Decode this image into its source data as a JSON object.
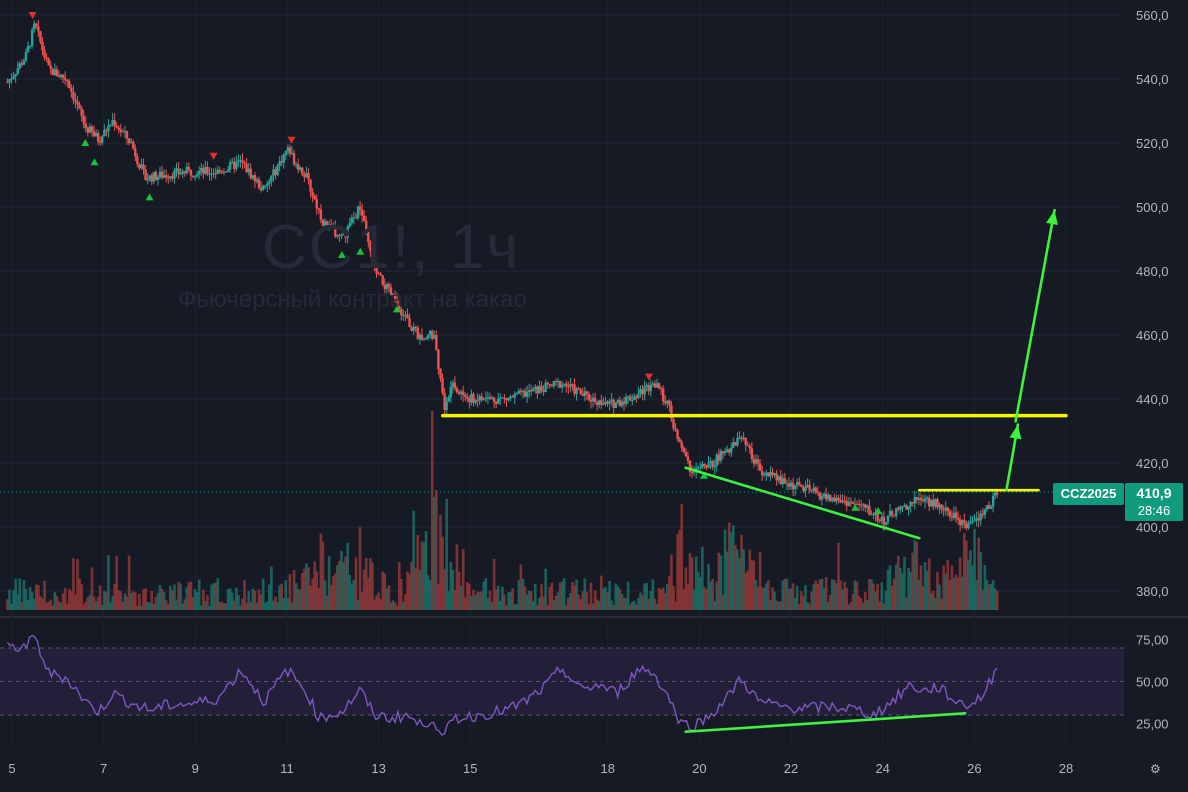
{
  "watermark": {
    "title": "CC1!, 1ч",
    "subtitle": "Фьючерсный контракт на какао"
  },
  "price_badge": {
    "symbol": "CCZ2025",
    "price": "410,9",
    "timer": "28:46"
  },
  "colors": {
    "background": "#161a25",
    "up": "#26a69a",
    "down": "#ef5350",
    "annotation_yellow": "#f5f500",
    "annotation_green": "#3ef23e",
    "rsi_line": "#7e57c2",
    "rsi_band": "#2a2240"
  },
  "chart_data": [
    {
      "type": "candlestick",
      "title": "",
      "y_ticks": [
        "560,0",
        "540,0",
        "520,0",
        "500,0",
        "480,0",
        "460,0",
        "440,0",
        "420,0",
        "400,0",
        "380,0"
      ],
      "ylim": [
        375,
        562
      ],
      "x_ticks": [
        "5",
        "7",
        "9",
        "11",
        "13",
        "15",
        "18",
        "20",
        "22",
        "24",
        "26",
        "28"
      ],
      "xlim": [
        4.8,
        29.0
      ],
      "grid": true,
      "last_price": 410.9,
      "close_path": [
        {
          "x": 4.9,
          "y": 539
        },
        {
          "x": 5.3,
          "y": 547
        },
        {
          "x": 5.5,
          "y": 557
        },
        {
          "x": 5.8,
          "y": 543
        },
        {
          "x": 6.2,
          "y": 540
        },
        {
          "x": 6.6,
          "y": 525
        },
        {
          "x": 6.9,
          "y": 521
        },
        {
          "x": 7.2,
          "y": 527
        },
        {
          "x": 7.6,
          "y": 520
        },
        {
          "x": 7.9,
          "y": 509
        },
        {
          "x": 8.3,
          "y": 510
        },
        {
          "x": 8.8,
          "y": 511
        },
        {
          "x": 9.5,
          "y": 511
        },
        {
          "x": 10.0,
          "y": 514
        },
        {
          "x": 10.5,
          "y": 505
        },
        {
          "x": 11.0,
          "y": 518
        },
        {
          "x": 11.4,
          "y": 510
        },
        {
          "x": 11.8,
          "y": 495
        },
        {
          "x": 12.2,
          "y": 490
        },
        {
          "x": 12.6,
          "y": 500
        },
        {
          "x": 12.9,
          "y": 480
        },
        {
          "x": 13.3,
          "y": 472
        },
        {
          "x": 13.6,
          "y": 465
        },
        {
          "x": 13.9,
          "y": 459
        },
        {
          "x": 14.2,
          "y": 460
        },
        {
          "x": 14.45,
          "y": 437
        },
        {
          "x": 14.6,
          "y": 444
        },
        {
          "x": 15.0,
          "y": 440
        },
        {
          "x": 15.8,
          "y": 440
        },
        {
          "x": 16.5,
          "y": 443
        },
        {
          "x": 17.0,
          "y": 445
        },
        {
          "x": 17.5,
          "y": 441
        },
        {
          "x": 18.0,
          "y": 438
        },
        {
          "x": 18.6,
          "y": 441
        },
        {
          "x": 19.0,
          "y": 445
        },
        {
          "x": 19.3,
          "y": 439
        },
        {
          "x": 19.5,
          "y": 428
        },
        {
          "x": 19.8,
          "y": 418
        },
        {
          "x": 20.2,
          "y": 419
        },
        {
          "x": 20.6,
          "y": 424
        },
        {
          "x": 20.9,
          "y": 428
        },
        {
          "x": 21.3,
          "y": 418
        },
        {
          "x": 21.8,
          "y": 414
        },
        {
          "x": 22.3,
          "y": 412
        },
        {
          "x": 22.8,
          "y": 409
        },
        {
          "x": 23.2,
          "y": 408
        },
        {
          "x": 23.6,
          "y": 406
        },
        {
          "x": 24.0,
          "y": 402
        },
        {
          "x": 24.4,
          "y": 406
        },
        {
          "x": 24.8,
          "y": 409
        },
        {
          "x": 25.2,
          "y": 407
        },
        {
          "x": 25.6,
          "y": 403
        },
        {
          "x": 25.9,
          "y": 400
        },
        {
          "x": 26.2,
          "y": 404
        },
        {
          "x": 26.5,
          "y": 410.9
        }
      ],
      "signal_markers": [
        {
          "x": 5.45,
          "y": 560,
          "dir": "down"
        },
        {
          "x": 6.6,
          "y": 520,
          "dir": "up"
        },
        {
          "x": 6.8,
          "y": 514,
          "dir": "up"
        },
        {
          "x": 8.0,
          "y": 503,
          "dir": "up"
        },
        {
          "x": 9.4,
          "y": 516,
          "dir": "down"
        },
        {
          "x": 11.1,
          "y": 521,
          "dir": "down"
        },
        {
          "x": 12.2,
          "y": 485,
          "dir": "up"
        },
        {
          "x": 12.6,
          "y": 486,
          "dir": "up"
        },
        {
          "x": 13.4,
          "y": 468,
          "dir": "up"
        },
        {
          "x": 18.9,
          "y": 447,
          "dir": "down"
        },
        {
          "x": 20.1,
          "y": 416,
          "dir": "up"
        },
        {
          "x": 23.4,
          "y": 406,
          "dir": "up"
        },
        {
          "x": 23.9,
          "y": 405,
          "dir": "up"
        }
      ],
      "volume_profile": [
        {
          "x": 14.3,
          "v": 1.0
        },
        {
          "x": 14.2,
          "v": 0.8
        },
        {
          "x": 12.6,
          "v": 0.6
        },
        {
          "x": 19.6,
          "v": 0.65
        },
        {
          "x": 20.8,
          "v": 0.78
        },
        {
          "x": 24.7,
          "v": 0.6
        },
        {
          "x": 25.8,
          "v": 0.7
        },
        {
          "x": 11.7,
          "v": 0.5
        }
      ],
      "annotations": [
        {
          "kind": "line",
          "color": "yellow",
          "from": {
            "x": 14.4,
            "y": 434.8
          },
          "to": {
            "x": 28.0,
            "y": 434.8
          }
        },
        {
          "kind": "line",
          "color": "yellow",
          "from": {
            "x": 24.8,
            "y": 411.5
          },
          "to": {
            "x": 27.4,
            "y": 411.5
          }
        },
        {
          "kind": "line",
          "color": "green",
          "from": {
            "x": 19.7,
            "y": 418.5
          },
          "to": {
            "x": 24.8,
            "y": 396.5
          }
        },
        {
          "kind": "arrow",
          "color": "green",
          "from": {
            "x": 26.7,
            "y": 411.5
          },
          "to": {
            "x": 26.95,
            "y": 432
          }
        },
        {
          "kind": "arrow",
          "color": "green",
          "from": {
            "x": 26.9,
            "y": 433
          },
          "to": {
            "x": 27.75,
            "y": 499
          }
        }
      ]
    },
    {
      "type": "line",
      "title": "",
      "y_ticks": [
        "75,00",
        "50,00",
        "25,00"
      ],
      "ylim": [
        10,
        85
      ],
      "bands": [
        30,
        70
      ],
      "series": [
        {
          "values": [
            {
              "x": 4.9,
              "y": 70
            },
            {
              "x": 5.3,
              "y": 71
            },
            {
              "x": 5.5,
              "y": 76
            },
            {
              "x": 5.8,
              "y": 55
            },
            {
              "x": 6.2,
              "y": 52
            },
            {
              "x": 6.6,
              "y": 38
            },
            {
              "x": 6.9,
              "y": 32
            },
            {
              "x": 7.2,
              "y": 43
            },
            {
              "x": 7.6,
              "y": 37
            },
            {
              "x": 8.0,
              "y": 33
            },
            {
              "x": 8.4,
              "y": 36
            },
            {
              "x": 9.0,
              "y": 37
            },
            {
              "x": 9.5,
              "y": 40
            },
            {
              "x": 10.0,
              "y": 57
            },
            {
              "x": 10.5,
              "y": 38
            },
            {
              "x": 11.0,
              "y": 57
            },
            {
              "x": 11.4,
              "y": 45
            },
            {
              "x": 11.7,
              "y": 28
            },
            {
              "x": 12.2,
              "y": 32
            },
            {
              "x": 12.6,
              "y": 45
            },
            {
              "x": 12.9,
              "y": 30
            },
            {
              "x": 13.3,
              "y": 28
            },
            {
              "x": 13.6,
              "y": 30
            },
            {
              "x": 13.9,
              "y": 24
            },
            {
              "x": 14.2,
              "y": 28
            },
            {
              "x": 14.4,
              "y": 14
            },
            {
              "x": 14.6,
              "y": 28
            },
            {
              "x": 15.0,
              "y": 29
            },
            {
              "x": 15.8,
              "y": 33
            },
            {
              "x": 16.2,
              "y": 38
            },
            {
              "x": 16.6,
              "y": 46
            },
            {
              "x": 17.0,
              "y": 58
            },
            {
              "x": 17.4,
              "y": 45
            },
            {
              "x": 17.8,
              "y": 48
            },
            {
              "x": 18.2,
              "y": 43
            },
            {
              "x": 18.7,
              "y": 58
            },
            {
              "x": 19.0,
              "y": 55
            },
            {
              "x": 19.3,
              "y": 42
            },
            {
              "x": 19.6,
              "y": 25
            },
            {
              "x": 19.9,
              "y": 24
            },
            {
              "x": 20.2,
              "y": 29
            },
            {
              "x": 20.6,
              "y": 40
            },
            {
              "x": 20.9,
              "y": 52
            },
            {
              "x": 21.3,
              "y": 38
            },
            {
              "x": 21.8,
              "y": 35
            },
            {
              "x": 22.3,
              "y": 34
            },
            {
              "x": 22.8,
              "y": 35
            },
            {
              "x": 23.3,
              "y": 34
            },
            {
              "x": 23.8,
              "y": 30
            },
            {
              "x": 24.2,
              "y": 38
            },
            {
              "x": 24.6,
              "y": 48
            },
            {
              "x": 24.9,
              "y": 44
            },
            {
              "x": 25.2,
              "y": 47
            },
            {
              "x": 25.6,
              "y": 38
            },
            {
              "x": 25.9,
              "y": 36
            },
            {
              "x": 26.2,
              "y": 42
            },
            {
              "x": 26.5,
              "y": 58
            }
          ]
        }
      ],
      "annotations": [
        {
          "kind": "line",
          "color": "green",
          "from": {
            "x": 19.7,
            "y": 20
          },
          "to": {
            "x": 25.8,
            "y": 31
          }
        }
      ]
    }
  ]
}
